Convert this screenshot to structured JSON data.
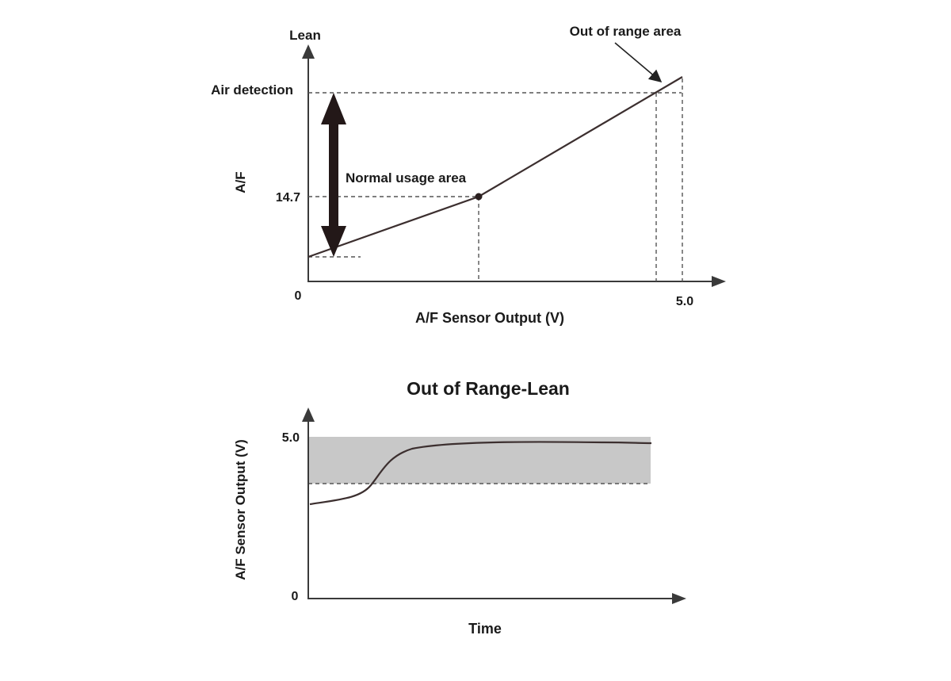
{
  "top_chart": {
    "y_axis_top_label": "Lean",
    "y_axis_label": "A/F",
    "x_axis_label": "A/F Sensor Output (V)",
    "origin_label": "0",
    "x_max_label": "5.0",
    "y_label_air_detection": "Air detection",
    "y_label_stoich": "14.7",
    "annotation_normal": "Normal usage area",
    "annotation_out_of_range": "Out of range area"
  },
  "bottom_chart": {
    "title": "Out of Range-Lean",
    "y_axis_label": "A/F Sensor Output (V)",
    "x_axis_label": "Time",
    "y_top_label": "5.0",
    "origin_label": "0"
  },
  "colors": {
    "out_of_range_band": "#c8c8c8",
    "line": "#3c2f2f"
  }
}
